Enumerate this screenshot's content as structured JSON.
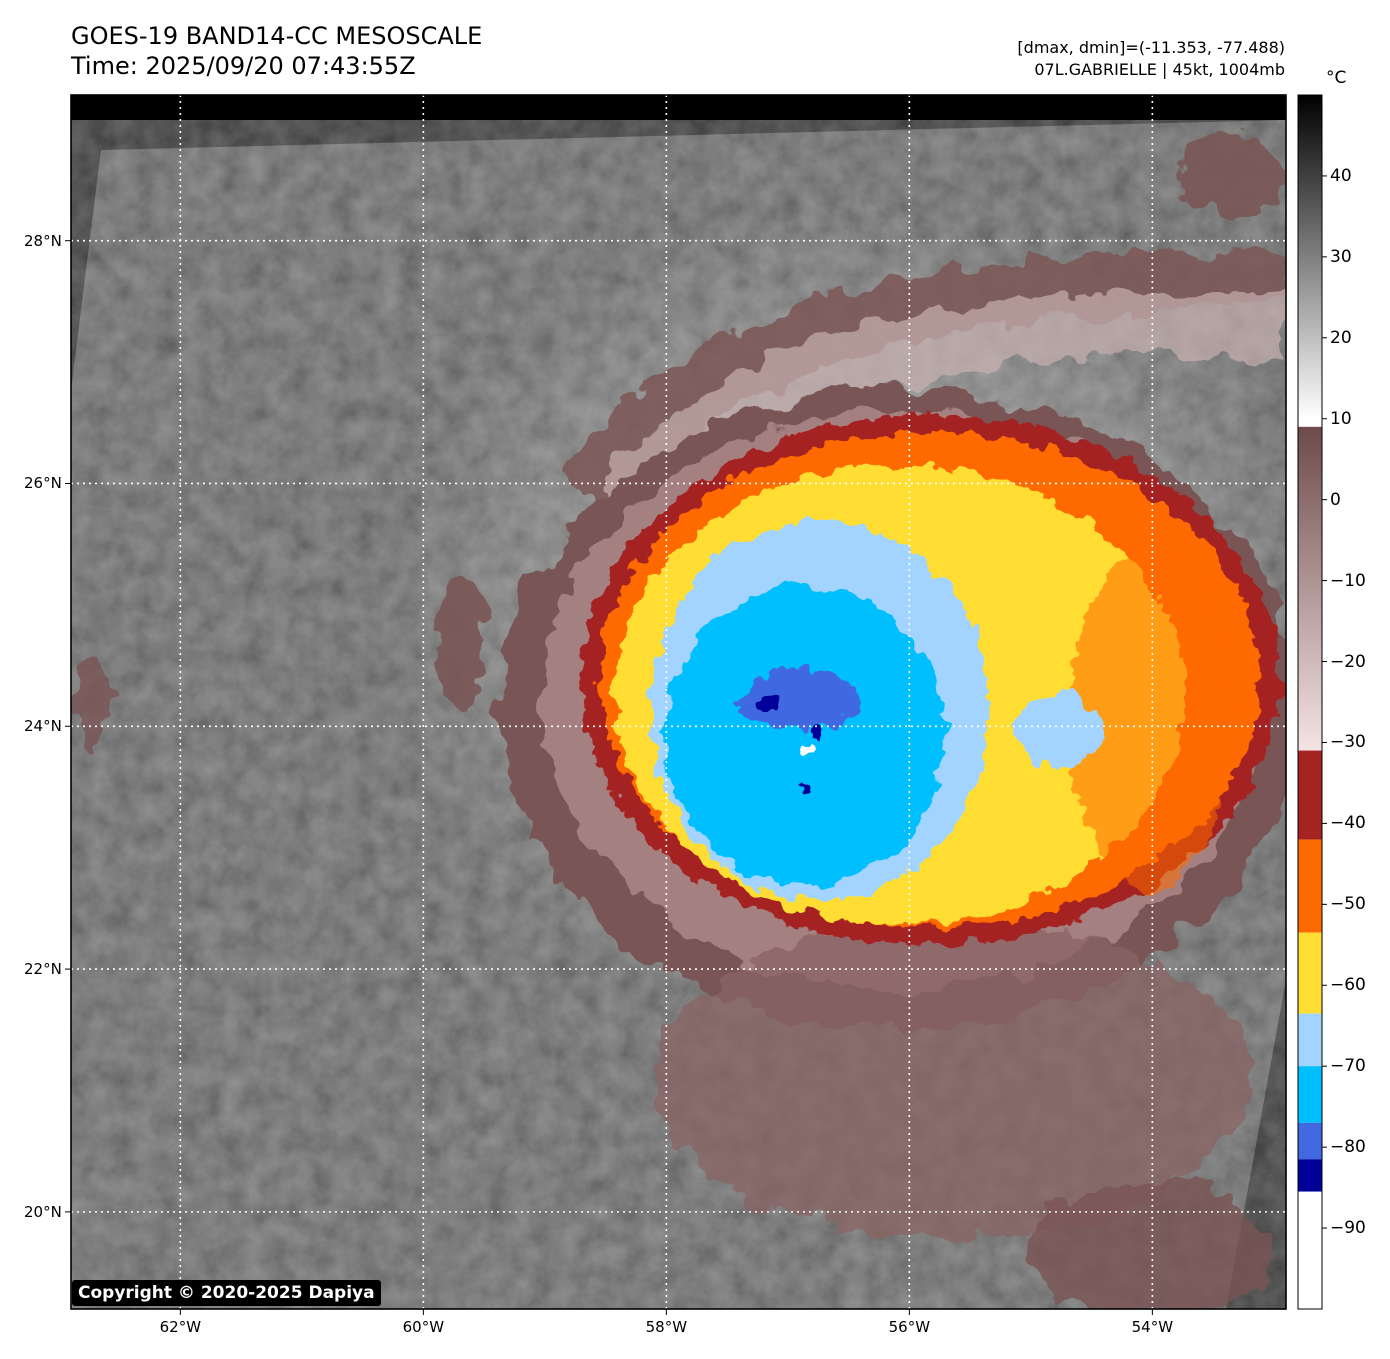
{
  "header": {
    "title_line1": "GOES-19 BAND14-CC MESOSCALE",
    "title_line2": "Time: 2025/09/20 07:43:55Z",
    "range_text": "[dmax, dmin]=(-11.353, -77.488)",
    "storm_text": "07L.GABRIELLE | 45kt, 1004mb"
  },
  "colorbar": {
    "unit": "°C",
    "ticks": [
      "40",
      "30",
      "20",
      "10",
      "0",
      "−10",
      "−20",
      "−30",
      "−40",
      "−50",
      "−60",
      "−70",
      "−80",
      "−90"
    ],
    "tick_values": [
      40,
      30,
      20,
      10,
      0,
      -10,
      -20,
      -30,
      -40,
      -50,
      -60,
      -70,
      -80,
      -90
    ],
    "range": [
      50,
      -100
    ],
    "segments": [
      {
        "from": 50,
        "to": 10,
        "type": "gradient",
        "colors": [
          "#000000",
          "#ffffff"
        ]
      },
      {
        "from": 9,
        "to": -31,
        "type": "gradient",
        "colors": [
          "#6e4a4a",
          "#f5e4e4"
        ]
      },
      {
        "from": -31,
        "to": -42,
        "type": "solid",
        "color": "#a52422"
      },
      {
        "from": -42,
        "to": -53.5,
        "type": "solid",
        "color": "#ff6a00"
      },
      {
        "from": -53.5,
        "to": -63.5,
        "type": "solid",
        "color": "#ffdd33"
      },
      {
        "from": -63.5,
        "to": -70,
        "type": "solid",
        "color": "#a3d4ff"
      },
      {
        "from": -70,
        "to": -77,
        "type": "solid",
        "color": "#00bfff"
      },
      {
        "from": -77,
        "to": -81.5,
        "type": "solid",
        "color": "#4169e1"
      },
      {
        "from": -81.5,
        "to": -85.5,
        "type": "solid",
        "color": "#000099"
      },
      {
        "from": -85.5,
        "to": -100,
        "type": "solid",
        "color": "#ffffff"
      }
    ]
  },
  "map": {
    "lat_labels": [
      "28°N",
      "26°N",
      "24°N",
      "22°N",
      "20°N"
    ],
    "lat_values": [
      28,
      26,
      24,
      22,
      20
    ],
    "lon_labels": [
      "62°W",
      "60°W",
      "58°W",
      "56°W",
      "54°W"
    ],
    "lon_values": [
      -62,
      -60,
      -58,
      -56,
      -54
    ],
    "lat_range": [
      19.2,
      29.2
    ],
    "lon_range": [
      -62.9,
      -52.9
    ]
  },
  "copyright": "Copyright © 2020-2025 Dapiya"
}
